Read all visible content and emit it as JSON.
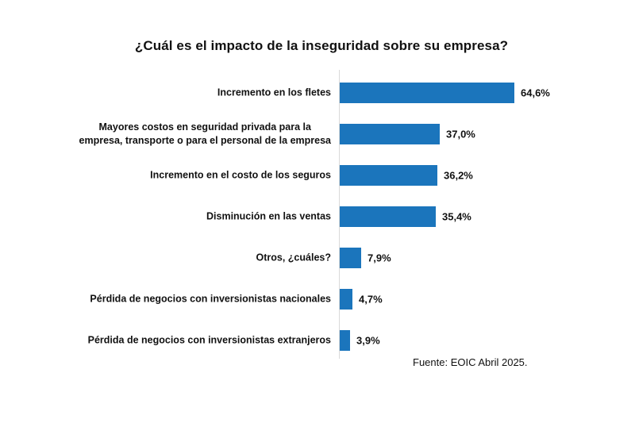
{
  "page": {
    "title": "¿Cuál es el impacto de la inseguridad sobre su empresa?",
    "source": "Fuente: EOIC Abril 2025."
  },
  "colors": {
    "bar": "#1B75BC",
    "axis": "#D9D9D9",
    "text": "#111111",
    "background": "#FFFFFF"
  },
  "chart_data": {
    "type": "bar",
    "orientation": "horizontal",
    "title": "¿Cuál es el impacto de la inseguridad sobre su empresa?",
    "source": "Fuente: EOIC Abril 2025.",
    "grid": false,
    "legend": false,
    "xlim": [
      0,
      70
    ],
    "value_suffix": "%",
    "decimal_separator": ",",
    "categories": [
      "Incremento en los fletes",
      "Mayores costos en seguridad privada para la\nempresa, transporte o para el personal de la empresa",
      "Incremento en el costo de los seguros",
      "Disminución en las ventas",
      "Otros, ¿cuáles?",
      "Pérdida de negocios con inversionistas nacionales",
      "Pérdida de negocios con inversionistas extranjeros"
    ],
    "values": [
      64.6,
      37.0,
      36.2,
      35.4,
      7.9,
      4.7,
      3.9
    ],
    "value_labels": [
      "64,6%",
      "37,0%",
      "36,2%",
      "35,4%",
      "7,9%",
      "4,7%",
      "3,9%"
    ]
  }
}
